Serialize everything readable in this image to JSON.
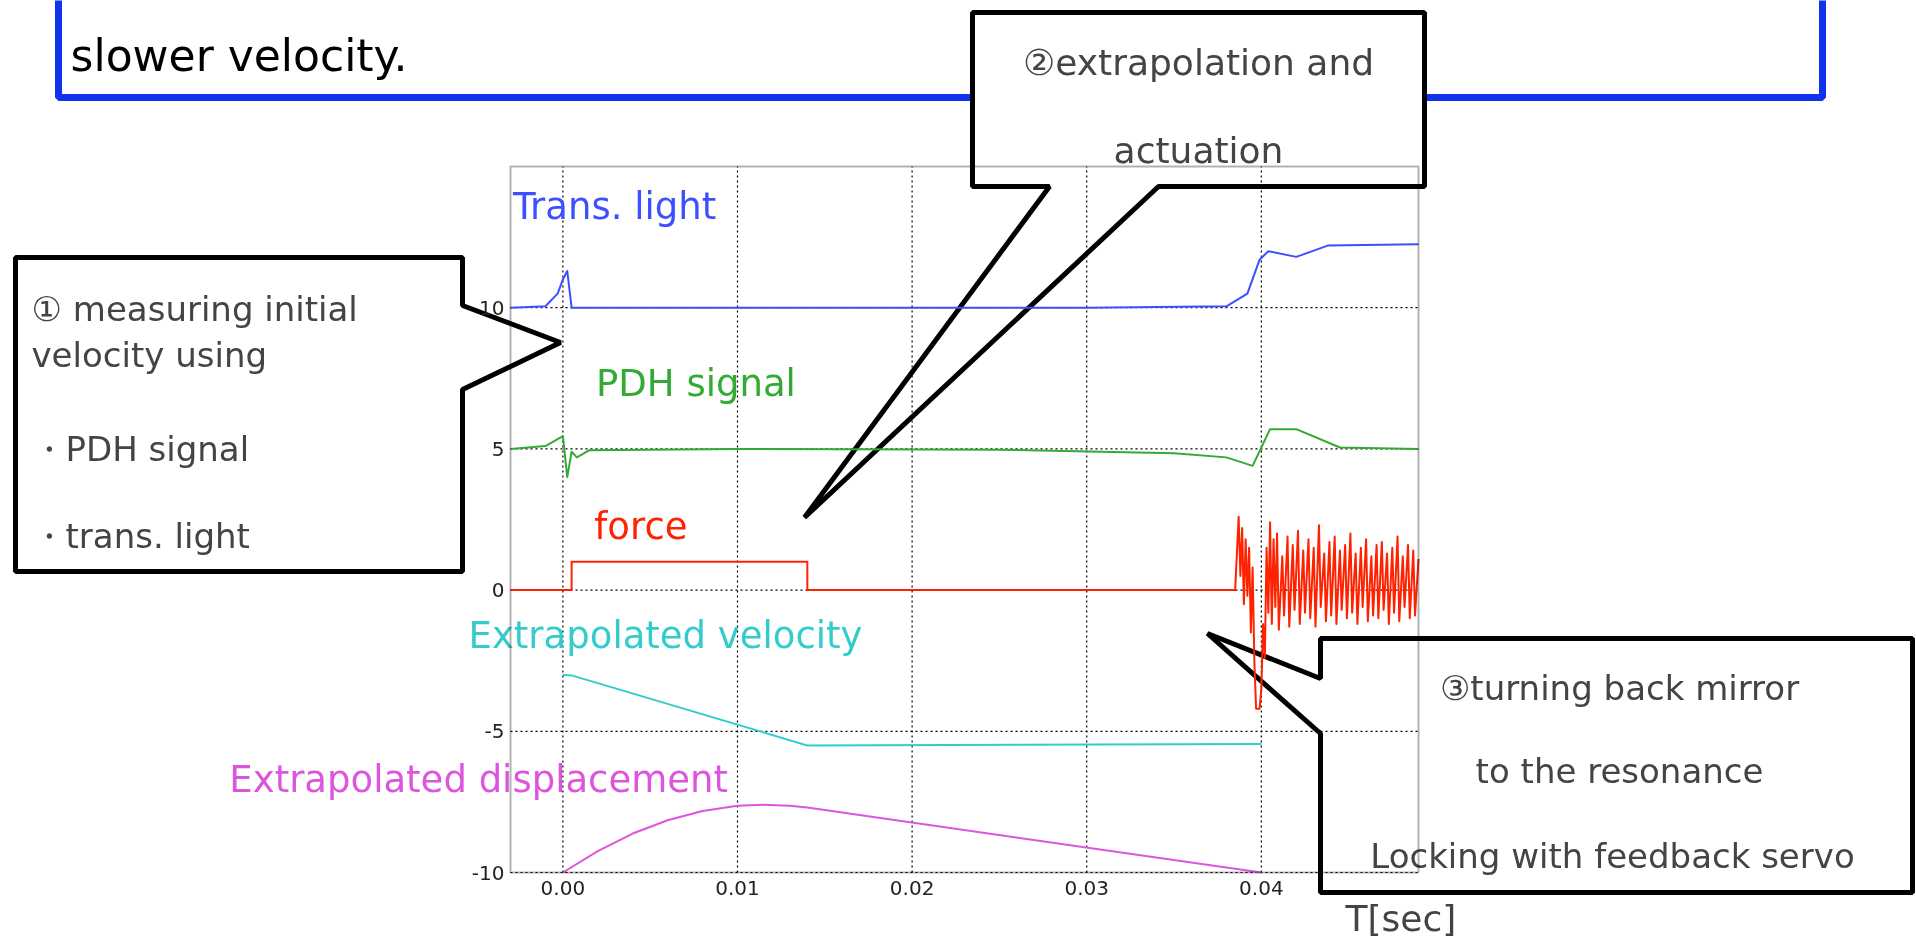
{
  "chart_data": {
    "type": "line",
    "xlabel": "T[sec]",
    "xlim": [
      -0.003,
      0.049
    ],
    "ylim": [
      -10,
      15
    ],
    "xticks": [
      {
        "value": 0,
        "label": "0.00"
      },
      {
        "value": 0.01,
        "label": "0.01"
      },
      {
        "value": 0.02,
        "label": "0.02"
      },
      {
        "value": 0.03,
        "label": "0.03"
      },
      {
        "value": 0.04,
        "label": "0.04"
      }
    ],
    "yticks": [
      -10,
      -5,
      0,
      5,
      10
    ],
    "grid": true,
    "series": [
      {
        "name": "Trans. light",
        "color": "#3c50ff",
        "x": [
          -0.003,
          -0.001,
          -0.0003,
          0.0,
          0.00025,
          0.0005,
          0.001,
          0.01,
          0.02,
          0.03,
          0.038,
          0.0392,
          0.0399,
          0.0404,
          0.042,
          0.0438,
          0.049
        ],
        "values": [
          10.0,
          10.05,
          10.5,
          11.0,
          11.3,
          10.0,
          10.0,
          10.0,
          10.0,
          10.0,
          10.05,
          10.5,
          11.7,
          12.0,
          11.8,
          12.2,
          12.25
        ]
      },
      {
        "name": "PDH signal",
        "color": "#33aa33",
        "x": [
          -0.003,
          -0.001,
          0.0,
          0.00025,
          0.0005,
          0.0008,
          0.0015,
          0.01,
          0.025,
          0.035,
          0.038,
          0.0395,
          0.0405,
          0.042,
          0.0445,
          0.049
        ],
        "values": [
          5.0,
          5.1,
          5.45,
          4.0,
          4.9,
          4.7,
          4.95,
          5.0,
          4.97,
          4.85,
          4.7,
          4.4,
          5.7,
          5.7,
          5.05,
          5.0
        ]
      },
      {
        "name": "force",
        "color": "#ff2200",
        "x": [
          -0.003,
          0.0005,
          0.0005,
          0.014,
          0.014,
          0.0385,
          0.0387,
          0.0388,
          0.0389,
          0.039,
          0.0391,
          0.0392,
          0.0393,
          0.0394,
          0.0395,
          0.0396,
          0.0397,
          0.0399,
          0.04,
          0.0401,
          0.0402,
          0.0403,
          0.0404,
          0.0405,
          0.0406,
          0.0407,
          0.0408,
          0.0409,
          0.041,
          0.0412,
          0.0413,
          0.0415,
          0.0416,
          0.0418,
          0.0419,
          0.0421,
          0.0422,
          0.0424,
          0.0425,
          0.0427,
          0.0428,
          0.043,
          0.0431,
          0.0433,
          0.0434,
          0.0436,
          0.0437,
          0.0439,
          0.044,
          0.0442,
          0.0443,
          0.0445,
          0.0446,
          0.0448,
          0.0449,
          0.0451,
          0.0452,
          0.0454,
          0.0455,
          0.0457,
          0.0458,
          0.046,
          0.0461,
          0.0463,
          0.0464,
          0.0466,
          0.0467,
          0.0469,
          0.047,
          0.0472,
          0.0473,
          0.0475,
          0.0476,
          0.0478,
          0.0479,
          0.0481,
          0.0482,
          0.0484,
          0.0485,
          0.0487,
          0.0488,
          0.049
        ],
        "values": [
          0,
          0,
          1.0,
          1.0,
          0,
          0,
          2.6,
          0.5,
          2.2,
          -0.5,
          1.8,
          -0.2,
          1.5,
          -1.5,
          0.8,
          -2.5,
          -4.2,
          -4.2,
          -3.5,
          -1.2,
          -2.4,
          1.5,
          -0.8,
          2.4,
          -1.2,
          1.8,
          -0.6,
          2.0,
          -1.4,
          1.2,
          -0.9,
          1.9,
          -1.3,
          1.6,
          -0.7,
          2.1,
          -1.2,
          1.4,
          -0.8,
          1.8,
          -1.0,
          1.5,
          -1.3,
          2.3,
          -0.6,
          1.3,
          -1.1,
          1.7,
          -0.9,
          1.9,
          -1.2,
          1.4,
          -0.7,
          1.6,
          -1.0,
          2.0,
          -0.8,
          1.3,
          -1.2,
          1.5,
          -0.6,
          1.8,
          -1.1,
          1.2,
          -0.9,
          1.6,
          -1.0,
          1.7,
          -0.7,
          1.3,
          -1.2,
          1.5,
          -0.8,
          1.9,
          -1.1,
          1.2,
          -0.6,
          1.6,
          -1.0,
          1.4,
          -0.9,
          1.1
        ]
      },
      {
        "name": "Extrapolated velocity",
        "color": "#33cccc",
        "x": [
          0.0,
          0.0005,
          0.014,
          0.04
        ],
        "values": [
          -3.0,
          -3.02,
          -5.5,
          -5.45
        ]
      },
      {
        "name": "Extrapolated displacement",
        "color": "#dd55dd",
        "x": [
          0.0,
          0.002,
          0.004,
          0.006,
          0.008,
          0.01,
          0.0115,
          0.013,
          0.014,
          0.04
        ],
        "values": [
          -10.0,
          -9.24,
          -8.62,
          -8.15,
          -7.82,
          -7.64,
          -7.6,
          -7.64,
          -7.7,
          -10.0
        ]
      }
    ],
    "annotations": [
      "slower velocity.",
      "②extrapolation and",
      "actuation",
      "① measuring initial",
      "velocity using",
      "・PDH signal",
      "・trans. light",
      "③turning back mirror",
      "to the resonance",
      "Locking with feedback servo"
    ]
  }
}
